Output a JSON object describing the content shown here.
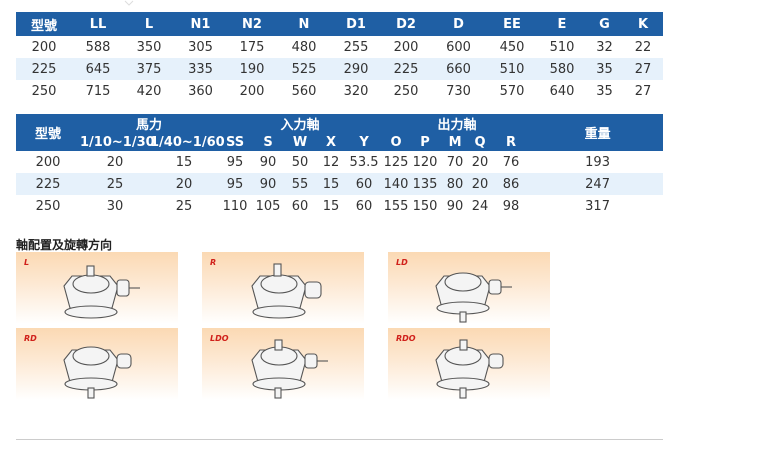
{
  "table1": {
    "headers": [
      "型號",
      "LL",
      "L",
      "N1",
      "N2",
      "N",
      "D1",
      "D2",
      "D",
      "EE",
      "E",
      "G",
      "K"
    ],
    "rows": [
      [
        "200",
        "588",
        "350",
        "305",
        "175",
        "480",
        "255",
        "200",
        "600",
        "450",
        "510",
        "32",
        "22"
      ],
      [
        "225",
        "645",
        "375",
        "335",
        "190",
        "525",
        "290",
        "225",
        "660",
        "510",
        "580",
        "35",
        "27"
      ],
      [
        "250",
        "715",
        "420",
        "360",
        "200",
        "560",
        "320",
        "250",
        "730",
        "570",
        "640",
        "35",
        "27"
      ]
    ]
  },
  "table2": {
    "group_headers": {
      "model": "型號",
      "power": "馬力",
      "input_shaft": "入力軸",
      "output_shaft": "出力軸",
      "weight": "重量"
    },
    "sub_headers": [
      "1/10~1/30",
      "1/40~1/60",
      "SS",
      "S",
      "W",
      "X",
      "Y",
      "O",
      "P",
      "M",
      "Q",
      "R"
    ],
    "rows": [
      [
        "200",
        "20",
        "15",
        "95",
        "90",
        "50",
        "12",
        "53.5",
        "125",
        "120",
        "70",
        "20",
        "76",
        "193"
      ],
      [
        "225",
        "25",
        "20",
        "95",
        "90",
        "55",
        "15",
        "60",
        "140",
        "135",
        "80",
        "20",
        "86",
        "247"
      ],
      [
        "250",
        "30",
        "25",
        "110",
        "105",
        "60",
        "15",
        "60",
        "155",
        "150",
        "90",
        "24",
        "98",
        "317"
      ]
    ]
  },
  "section_title": "軸配置及旋轉方向",
  "configs": [
    "L",
    "R",
    "LD",
    "RD",
    "LDO",
    "RDO"
  ],
  "colors": {
    "header_bg": "#1f5fa4",
    "alt_row_bg": "#e6f1fb",
    "label_red": "#d0201a"
  }
}
